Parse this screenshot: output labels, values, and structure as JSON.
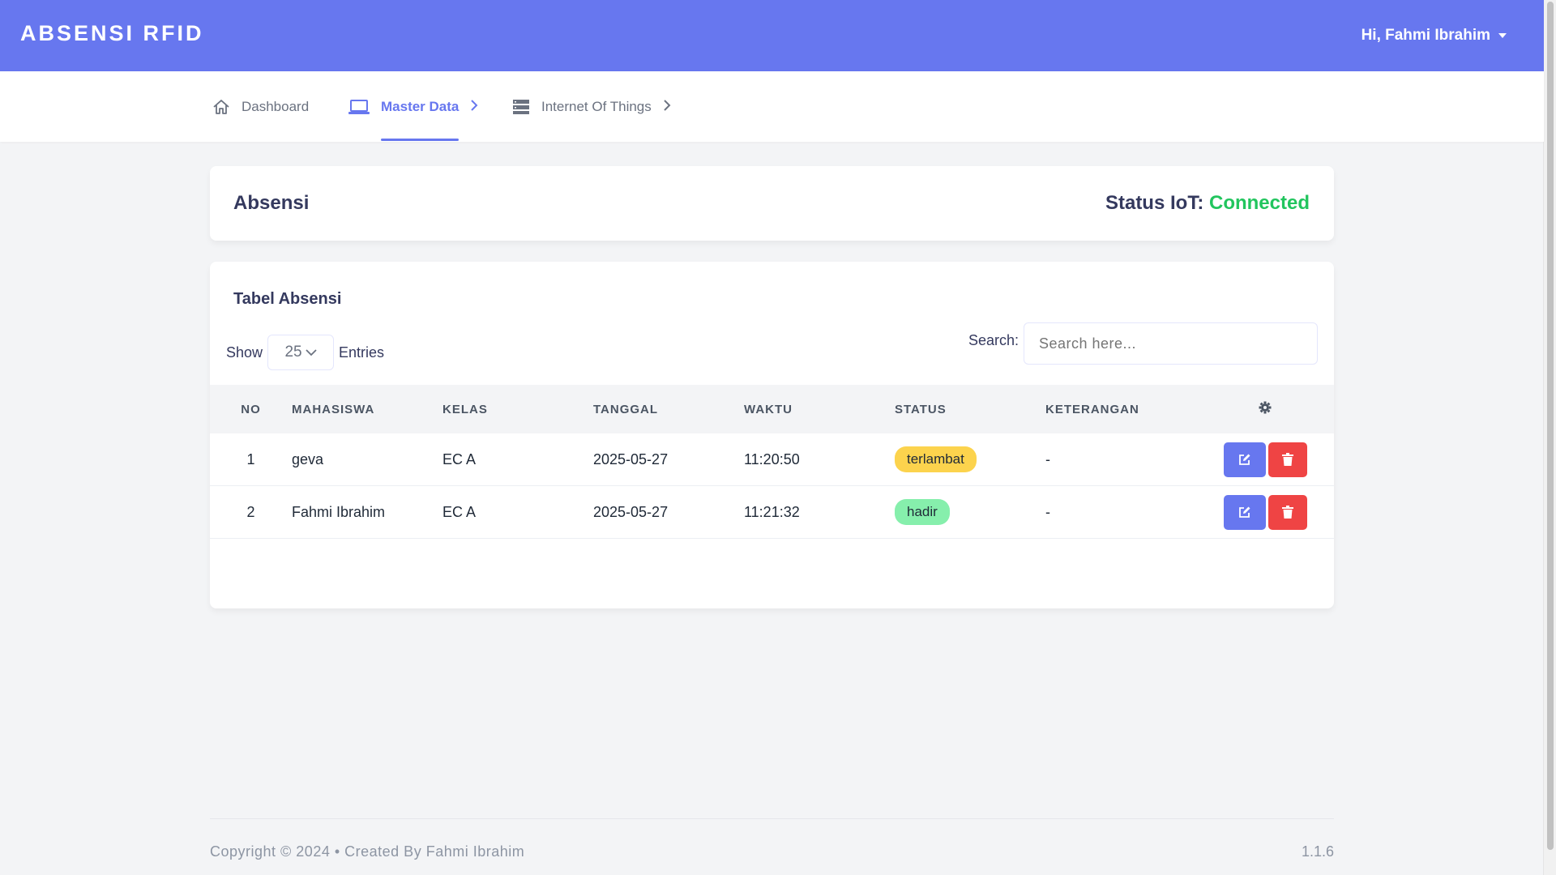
{
  "app": {
    "brand": "ABSENSI RFID",
    "user_greeting": "Hi, Fahmi Ibrahim"
  },
  "nav": {
    "items": [
      {
        "label": "Dashboard",
        "icon": "home-icon"
      },
      {
        "label": "Master Data",
        "icon": "laptop-icon",
        "active": true
      },
      {
        "label": "Internet Of Things",
        "icon": "server-icon"
      }
    ]
  },
  "header": {
    "title": "Absensi",
    "status_label": "Status IoT:",
    "status_value": "Connected"
  },
  "table_card": {
    "title": "Tabel Absensi",
    "show_label": "Show",
    "entries_value": "25",
    "entries_label": "Entries",
    "search_label": "Search:",
    "search_placeholder": "Search here..."
  },
  "table": {
    "columns": [
      "NO",
      "MAHASISWA",
      "KELAS",
      "TANGGAL",
      "WAKTU",
      "STATUS",
      "KETERANGAN"
    ],
    "settings_icon": "gear-icon",
    "rows": [
      {
        "no": "1",
        "mahasiswa": "geva",
        "kelas": "EC A",
        "tanggal": "2025-05-27",
        "waktu": "11:20:50",
        "status": "terlambat",
        "keterangan": "-"
      },
      {
        "no": "2",
        "mahasiswa": "Fahmi Ibrahim",
        "kelas": "EC A",
        "tanggal": "2025-05-27",
        "waktu": "11:21:32",
        "status": "hadir",
        "keterangan": "-"
      }
    ]
  },
  "footer": {
    "left": "Copyright © 2024  •  Created By Fahmi Ibrahim",
    "version": "1.1.6"
  },
  "colors": {
    "primary": "#6777ef",
    "success": "#22c55e",
    "danger": "#ef4444",
    "warning": "#fcd34d"
  }
}
